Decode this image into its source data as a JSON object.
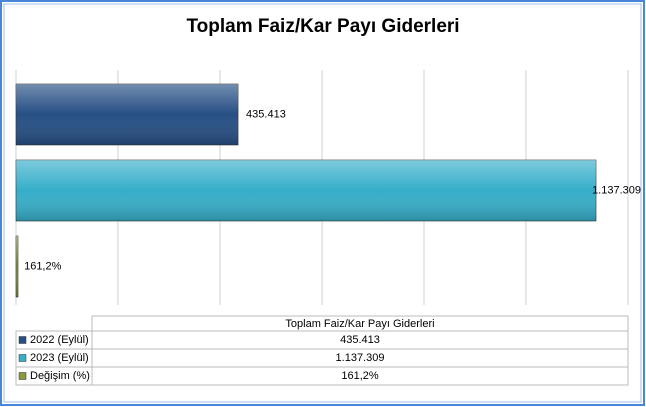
{
  "chart_data": {
    "type": "bar",
    "orientation": "horizontal",
    "title": "Toplam Faiz/Kar Payı Giderleri",
    "categories": [
      "Toplam Faiz/Kar Payı Giderleri"
    ],
    "series": [
      {
        "name": "2022 (Eylül)",
        "color": "#264f84",
        "values": [
          435413
        ],
        "value_labels": [
          "435.413"
        ]
      },
      {
        "name": "2023 (Eylül)",
        "color": "#36aec9",
        "values": [
          1137309
        ],
        "value_labels": [
          "1.137.309"
        ]
      },
      {
        "name": "Değişim (%)",
        "color": "#8c9a3e",
        "values": [
          161.2
        ],
        "value_labels": [
          "161,2%"
        ]
      }
    ],
    "xlim": [
      0,
      1200000
    ],
    "xticks": [
      0,
      200000,
      400000,
      600000,
      800000,
      1000000,
      1200000
    ],
    "grid": true,
    "data_table": true
  }
}
